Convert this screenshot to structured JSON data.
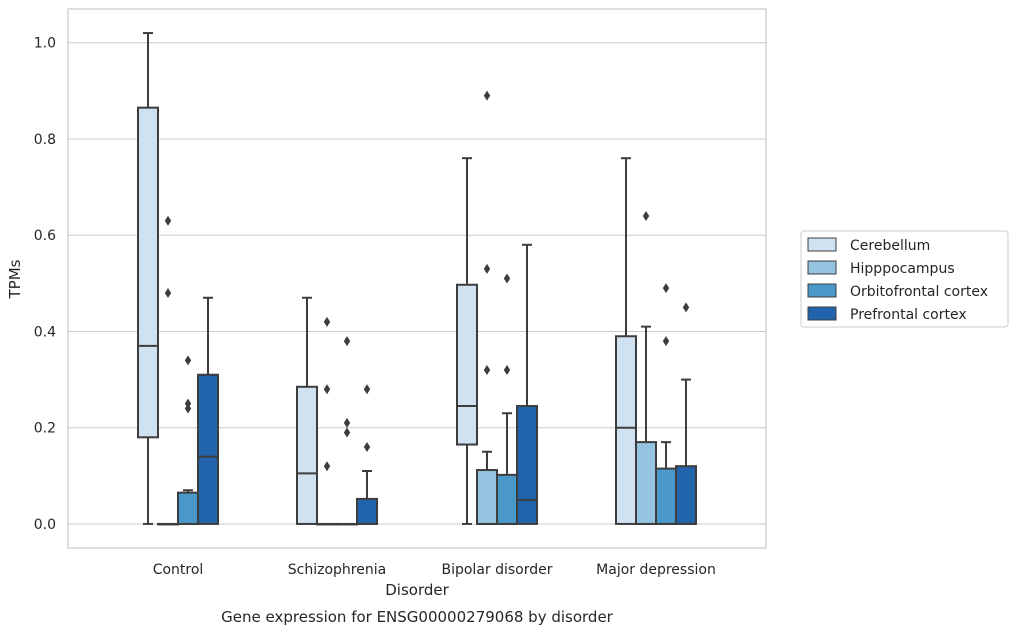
{
  "chart_data": {
    "type": "box",
    "caption": "Gene expression for ENSG00000279068 by disorder",
    "xlabel": "Disorder",
    "ylabel": "TPMs",
    "ylim": [
      -0.05,
      1.07
    ],
    "yticks": [
      "0.0",
      "0.2",
      "0.4",
      "0.6",
      "0.8",
      "1.0"
    ],
    "ytick_values": [
      0.0,
      0.2,
      0.4,
      0.6,
      0.8,
      1.0
    ],
    "grid": true,
    "legend_position": "right",
    "categories": [
      "Control",
      "Schizophrenia",
      "Bipolar disorder",
      "Major depression"
    ],
    "series": [
      {
        "name": "Cerebellum",
        "color": "#d0e1f2",
        "boxes": [
          {
            "whislo": 0.0,
            "q1": 0.18,
            "med": 0.37,
            "q3": 0.865,
            "whishi": 1.02,
            "fliers": []
          },
          {
            "whislo": 0.0,
            "q1": 0.0,
            "med": 0.105,
            "q3": 0.285,
            "whishi": 0.47,
            "fliers": []
          },
          {
            "whislo": 0.0,
            "q1": 0.165,
            "med": 0.245,
            "q3": 0.497,
            "whishi": 0.76,
            "fliers": []
          },
          {
            "whislo": 0.0,
            "q1": 0.0,
            "med": 0.2,
            "q3": 0.39,
            "whishi": 0.76,
            "fliers": []
          }
        ]
      },
      {
        "name": "Hipppocampus",
        "color": "#94c4df",
        "boxes": [
          {
            "whislo": 0.0,
            "q1": 0.0,
            "med": 0.0,
            "q3": 0.0,
            "whishi": 0.0,
            "fliers": [
              0.63,
              0.48
            ]
          },
          {
            "whislo": 0.0,
            "q1": 0.0,
            "med": 0.0,
            "q3": 0.0,
            "whishi": 0.0,
            "fliers": [
              0.42,
              0.28,
              0.12
            ]
          },
          {
            "whislo": 0.0,
            "q1": 0.0,
            "med": 0.0,
            "q3": 0.112,
            "whishi": 0.15,
            "fliers": [
              0.89,
              0.53,
              0.32
            ]
          },
          {
            "whislo": 0.0,
            "q1": 0.0,
            "med": 0.0,
            "q3": 0.17,
            "whishi": 0.41,
            "fliers": [
              0.64
            ]
          }
        ]
      },
      {
        "name": "Orbitofrontal cortex",
        "color": "#4a98c9",
        "boxes": [
          {
            "whislo": 0.0,
            "q1": 0.0,
            "med": 0.0,
            "q3": 0.065,
            "whishi": 0.07,
            "fliers": [
              0.34,
              0.25,
              0.24
            ]
          },
          {
            "whislo": 0.0,
            "q1": 0.0,
            "med": 0.0,
            "q3": 0.0,
            "whishi": 0.0,
            "fliers": [
              0.38,
              0.21,
              0.19
            ]
          },
          {
            "whislo": 0.0,
            "q1": 0.0,
            "med": 0.0,
            "q3": 0.102,
            "whishi": 0.23,
            "fliers": [
              0.51,
              0.32
            ]
          },
          {
            "whislo": 0.0,
            "q1": 0.0,
            "med": 0.0,
            "q3": 0.115,
            "whishi": 0.17,
            "fliers": [
              0.49,
              0.38
            ]
          }
        ]
      },
      {
        "name": "Prefrontal cortex",
        "color": "#2164ab",
        "boxes": [
          {
            "whislo": 0.0,
            "q1": 0.0,
            "med": 0.14,
            "q3": 0.31,
            "whishi": 0.47,
            "fliers": []
          },
          {
            "whislo": 0.0,
            "q1": 0.0,
            "med": 0.0,
            "q3": 0.052,
            "whishi": 0.11,
            "fliers": [
              0.28,
              0.16
            ]
          },
          {
            "whislo": 0.0,
            "q1": 0.0,
            "med": 0.05,
            "q3": 0.245,
            "whishi": 0.58,
            "fliers": []
          },
          {
            "whislo": 0.0,
            "q1": 0.0,
            "med": 0.0,
            "q3": 0.12,
            "whishi": 0.3,
            "fliers": [
              0.45
            ]
          }
        ]
      }
    ]
  }
}
